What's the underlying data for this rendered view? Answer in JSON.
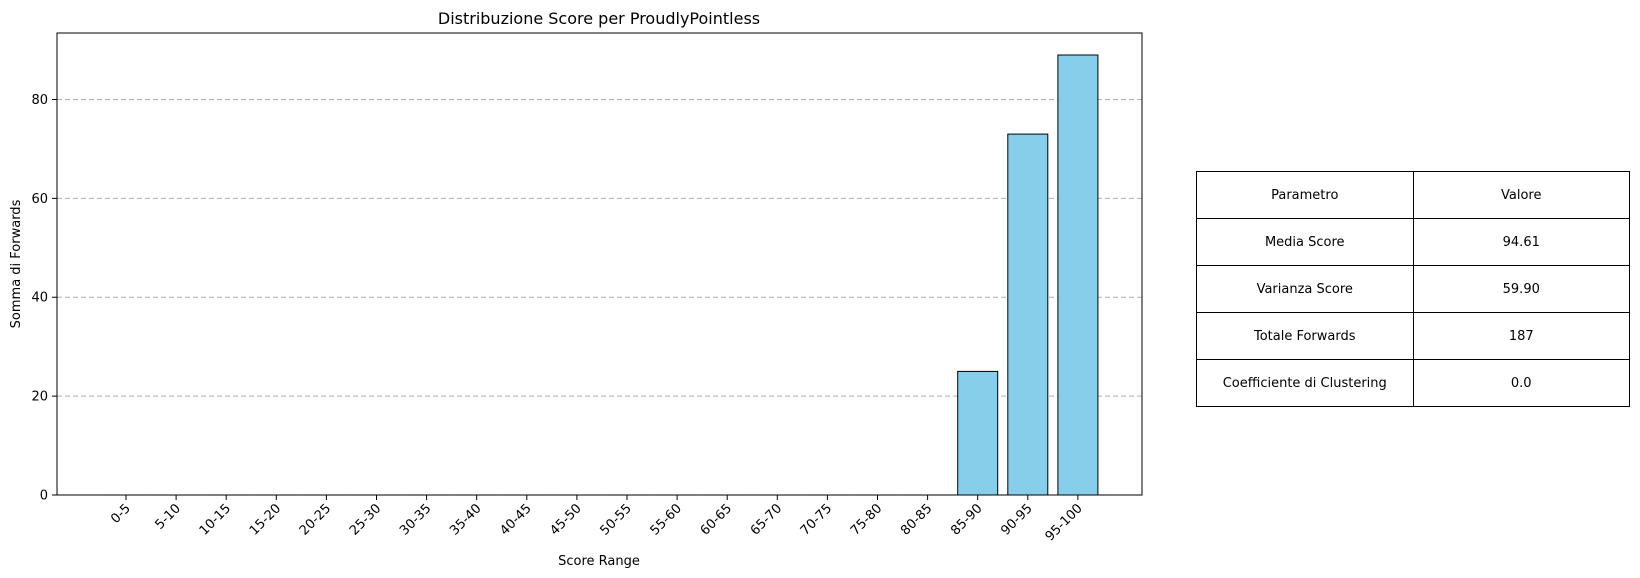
{
  "chart_data": {
    "type": "bar",
    "title": "Distribuzione Score per ProudlyPointless",
    "xlabel": "Score Range",
    "ylabel": "Somma di Forwards",
    "categories": [
      "0-5",
      "5-10",
      "10-15",
      "15-20",
      "20-25",
      "25-30",
      "30-35",
      "35-40",
      "40-45",
      "45-50",
      "50-55",
      "55-60",
      "60-65",
      "65-70",
      "70-75",
      "75-80",
      "80-85",
      "85-90",
      "90-95",
      "95-100"
    ],
    "values": [
      0,
      0,
      0,
      0,
      0,
      0,
      0,
      0,
      0,
      0,
      0,
      0,
      0,
      0,
      0,
      0,
      0,
      25,
      73,
      89
    ],
    "ylim": [
      0,
      93.45
    ],
    "yticks": [
      0,
      20,
      40,
      60,
      80
    ],
    "grid": "y-dashed",
    "bar_color": "#87CEEB",
    "bar_edge_color": "#000000"
  },
  "table": {
    "header": [
      "Parametro",
      "Valore"
    ],
    "rows": [
      [
        "Media Score",
        "94.61"
      ],
      [
        "Varianza Score",
        "59.90"
      ],
      [
        "Totale Forwards",
        "187"
      ],
      [
        "Coefficiente di Clustering",
        "0.0"
      ]
    ]
  }
}
